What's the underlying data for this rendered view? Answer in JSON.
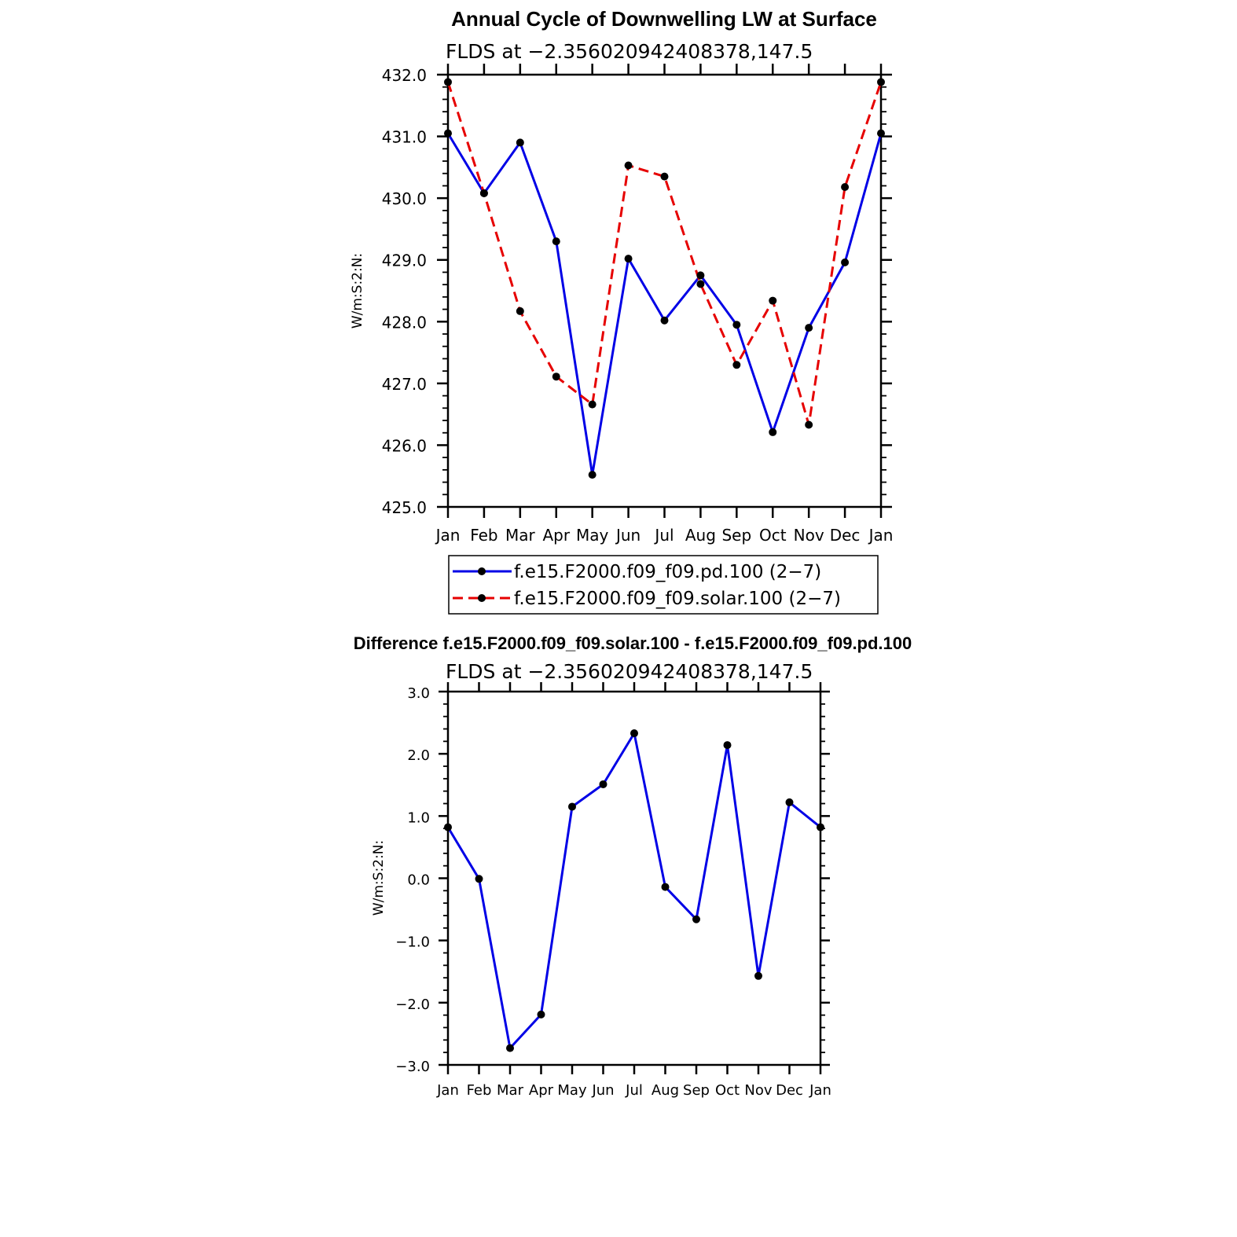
{
  "chart_data": [
    {
      "type": "line",
      "title": "Annual Cycle of Downwelling LW at Surface",
      "subtitle": "FLDS at −2.356020942408378,147.5",
      "xlabel": "",
      "ylabel": "W/m:S:2:N:",
      "categories": [
        "Jan",
        "Feb",
        "Mar",
        "Apr",
        "May",
        "Jun",
        "Jul",
        "Aug",
        "Sep",
        "Oct",
        "Nov",
        "Dec",
        "Jan"
      ],
      "ylim": [
        425.0,
        432.0
      ],
      "yticks": [
        "425.0",
        "426.0",
        "427.0",
        "428.0",
        "429.0",
        "430.0",
        "431.0",
        "432.0"
      ],
      "grid": false,
      "legend_position": "bottom",
      "series": [
        {
          "name": "f.e15.F2000.f09_f09.pd.100 (2−7)",
          "color": "#0000e6",
          "dash": "solid",
          "values": [
            431.05,
            430.08,
            430.9,
            429.3,
            425.52,
            429.02,
            428.02,
            428.75,
            427.95,
            426.21,
            427.9,
            428.96,
            431.05
          ]
        },
        {
          "name": "f.e15.F2000.f09_f09.solar.100 (2−7)",
          "color": "#e60000",
          "dash": "dashed",
          "values": [
            431.88,
            430.08,
            428.17,
            427.11,
            426.66,
            430.53,
            430.35,
            428.61,
            427.3,
            428.34,
            426.33,
            430.18,
            431.88
          ]
        }
      ]
    },
    {
      "type": "line",
      "title": "Difference f.e15.F2000.f09_f09.solar.100 - f.e15.F2000.f09_f09.pd.100",
      "subtitle": "FLDS at −2.356020942408378,147.5",
      "xlabel": "",
      "ylabel": "W/m:S:2:N:",
      "categories": [
        "Jan",
        "Feb",
        "Mar",
        "Apr",
        "May",
        "Jun",
        "Jul",
        "Aug",
        "Sep",
        "Oct",
        "Nov",
        "Dec",
        "Jan"
      ],
      "ylim": [
        -3.0,
        3.0
      ],
      "yticks": [
        "−3.0",
        "−2.0",
        "−1.0",
        "0.0",
        "1.0",
        "2.0",
        "3.0"
      ],
      "grid": false,
      "series": [
        {
          "color": "#0000e6",
          "dash": "solid",
          "values": [
            0.82,
            -0.01,
            -2.73,
            -2.19,
            1.15,
            1.51,
            2.33,
            -0.14,
            -0.66,
            2.14,
            -1.57,
            1.22,
            0.82
          ]
        }
      ]
    }
  ]
}
